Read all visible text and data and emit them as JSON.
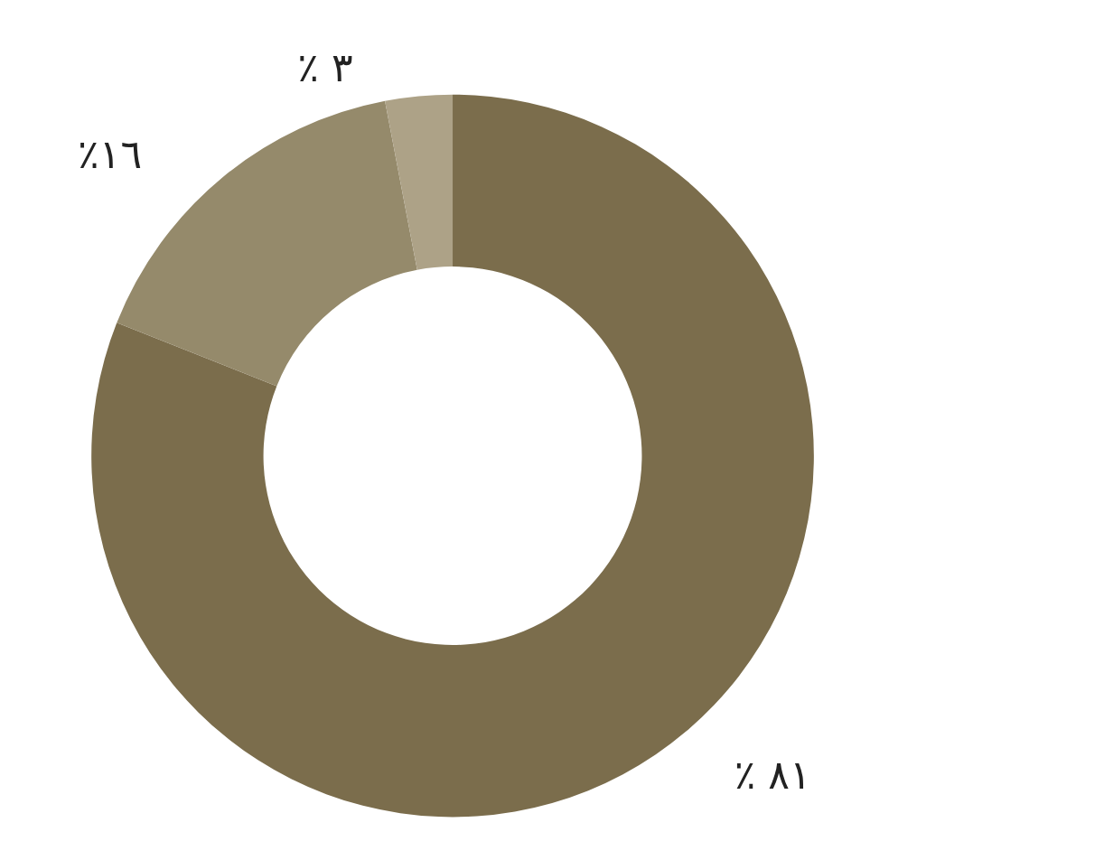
{
  "chart_data": {
    "type": "donut",
    "categories": [
      null,
      null,
      null
    ],
    "values": [
      81,
      16,
      3
    ],
    "colors": [
      "#7b6d4c",
      "#958a6b",
      "#ada287"
    ],
    "value_labels": [
      "٪ ٨١",
      "٪١٦",
      "٪ ٣"
    ]
  }
}
